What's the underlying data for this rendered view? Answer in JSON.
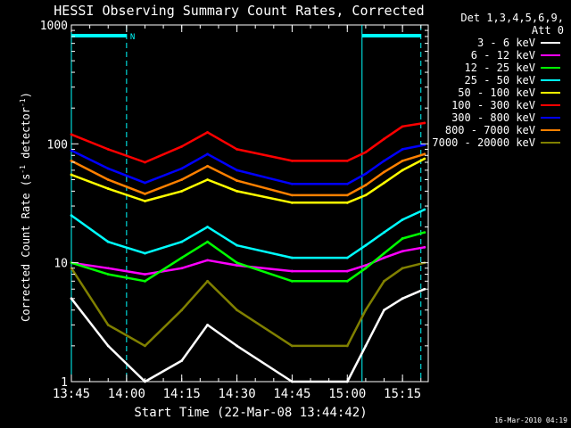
{
  "chart_data": {
    "type": "line",
    "title": "HESSI Observing Summary Count Rates, Corrected",
    "xlabel": "Start Time (22-Mar-08 13:44:42)",
    "ylabel_prefix": "Corrected Count Rate (s",
    "ylabel_sup1": "-1",
    "ylabel_mid": " detector",
    "ylabel_sup2": "-1",
    "ylabel_suffix": ")",
    "y_scale": "log",
    "ylim": [
      1,
      1000
    ],
    "xlim": [
      "13:45",
      "15:22"
    ],
    "x_tick_labels": [
      "13:45",
      "14:00",
      "14:15",
      "14:30",
      "14:45",
      "15:00",
      "15:15"
    ],
    "y_tick_labels": [
      "1",
      "10",
      "100",
      "1000"
    ],
    "legend_header": [
      "Det 1,3,4,5,6,9,",
      "Att 0"
    ],
    "legend_position": "right",
    "series": [
      {
        "name": "3 - 6 keV",
        "color": "#ffffff",
        "x": [
          "13:45",
          "13:55",
          "14:05",
          "14:15",
          "14:22",
          "14:30",
          "14:45",
          "15:00",
          "15:05",
          "15:10",
          "15:15",
          "15:21"
        ],
        "values": [
          5,
          2,
          1,
          1.5,
          3,
          2,
          1,
          1,
          2,
          4,
          5,
          6
        ]
      },
      {
        "name": "6 - 12 keV",
        "color": "#ff00ff",
        "x": [
          "13:45",
          "13:55",
          "14:05",
          "14:15",
          "14:22",
          "14:30",
          "14:45",
          "15:00",
          "15:05",
          "15:10",
          "15:15",
          "15:21"
        ],
        "values": [
          10,
          9,
          8,
          9,
          10.5,
          9.5,
          8.5,
          8.5,
          9.5,
          11,
          12.5,
          13.5
        ]
      },
      {
        "name": "12 - 25 keV",
        "color": "#00ff00",
        "x": [
          "13:45",
          "13:55",
          "14:05",
          "14:15",
          "14:22",
          "14:30",
          "14:45",
          "15:00",
          "15:05",
          "15:10",
          "15:15",
          "15:21"
        ],
        "values": [
          10,
          8,
          7,
          11,
          15,
          10,
          7,
          7,
          9,
          12,
          16,
          18
        ]
      },
      {
        "name": "25 - 50 keV",
        "color": "#00ffff",
        "x": [
          "13:45",
          "13:55",
          "14:05",
          "14:15",
          "14:22",
          "14:30",
          "14:45",
          "15:00",
          "15:05",
          "15:10",
          "15:15",
          "15:21"
        ],
        "values": [
          25,
          15,
          12,
          15,
          20,
          14,
          11,
          11,
          14,
          18,
          23,
          28
        ]
      },
      {
        "name": "50 - 100 keV",
        "color": "#ffff00",
        "x": [
          "13:45",
          "13:55",
          "14:05",
          "14:15",
          "14:22",
          "14:30",
          "14:45",
          "15:00",
          "15:05",
          "15:10",
          "15:15",
          "15:21"
        ],
        "values": [
          55,
          42,
          33,
          40,
          50,
          40,
          32,
          32,
          37,
          47,
          60,
          75
        ]
      },
      {
        "name": "100 - 300 keV",
        "color": "#ff0000",
        "x": [
          "13:45",
          "13:55",
          "14:05",
          "14:15",
          "14:22",
          "14:30",
          "14:45",
          "15:00",
          "15:05",
          "15:10",
          "15:15",
          "15:21"
        ],
        "values": [
          120,
          90,
          70,
          95,
          125,
          90,
          72,
          72,
          85,
          110,
          140,
          150
        ]
      },
      {
        "name": "300 - 800 keV",
        "color": "#0000ff",
        "x": [
          "13:45",
          "13:55",
          "14:05",
          "14:15",
          "14:22",
          "14:30",
          "14:45",
          "15:00",
          "15:05",
          "15:10",
          "15:15",
          "15:21"
        ],
        "values": [
          88,
          62,
          47,
          62,
          82,
          60,
          46,
          46,
          56,
          72,
          90,
          98
        ]
      },
      {
        "name": "800 - 7000 keV",
        "color": "#ff8000",
        "x": [
          "13:45",
          "13:55",
          "14:05",
          "14:15",
          "14:22",
          "14:30",
          "14:45",
          "15:00",
          "15:05",
          "15:10",
          "15:15",
          "15:21"
        ],
        "values": [
          72,
          50,
          38,
          50,
          65,
          49,
          37,
          37,
          45,
          58,
          72,
          82
        ]
      },
      {
        "name": "7000 - 20000 keV",
        "color": "#808000",
        "x": [
          "13:45",
          "13:55",
          "14:05",
          "14:15",
          "14:22",
          "14:30",
          "14:45",
          "15:00",
          "15:05",
          "15:10",
          "15:15",
          "15:21"
        ],
        "values": [
          9,
          3,
          2,
          4,
          7,
          4,
          2,
          2,
          4,
          7,
          9,
          10
        ]
      }
    ],
    "night_segments": [
      [
        "13:45",
        "14:00"
      ],
      [
        "15:04",
        "15:20"
      ]
    ],
    "night_marker": "N",
    "timestamp": "16-Mar-2010 04:19"
  }
}
